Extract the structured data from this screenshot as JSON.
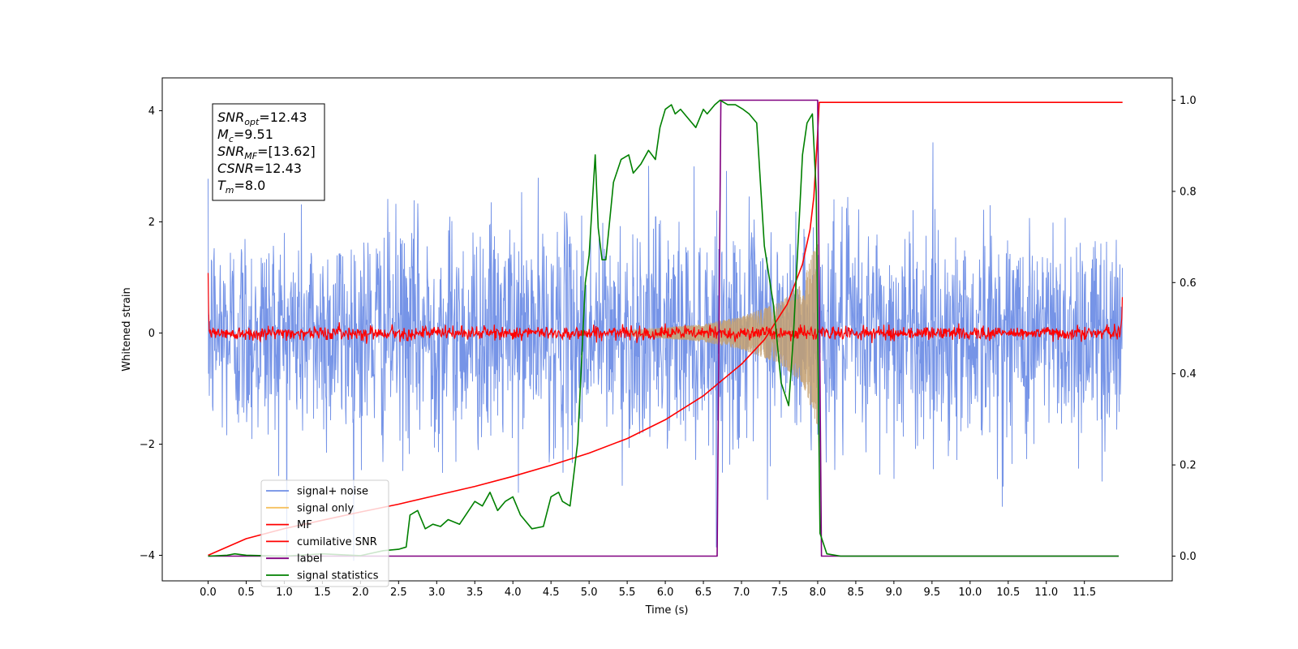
{
  "chart_data": {
    "type": "line",
    "xlabel": "Time (s)",
    "ylabel": "Whitened strain",
    "xlim": [
      -0.6,
      12.6
    ],
    "ylim": [
      -4.45,
      4.6
    ],
    "y2lim": [
      -0.05,
      1.04
    ],
    "x_ticks": [
      "0.0",
      "0.5",
      "1.0",
      "1.5",
      "2.0",
      "2.5",
      "3.0",
      "3.5",
      "4.0",
      "4.5",
      "5.0",
      "5.5",
      "6.0",
      "6.5",
      "7.0",
      "7.5",
      "8.0",
      "8.5",
      "9.0",
      "9.5",
      "10.0",
      "10.5",
      "11.0",
      "11.5"
    ],
    "y_ticks": [
      "4",
      "2",
      "0",
      "−2",
      "−4"
    ],
    "y2_ticks": [
      "1.0",
      "0.8",
      "0.6",
      "0.4",
      "0.2",
      "0.0"
    ],
    "info_box": [
      {
        "sym": "SNR",
        "sub": "opt",
        "value": "=12.43"
      },
      {
        "sym": "M",
        "sub": "c",
        "value": "=9.51"
      },
      {
        "sym": "SNR",
        "sub": "MF",
        "value": "=[13.62]"
      },
      {
        "sym": "CSNR",
        "sub": "",
        "value": "=12.43"
      },
      {
        "sym": "T",
        "sub": "m",
        "value": "=8.0"
      }
    ],
    "legend": [
      {
        "label": "signal+ noise",
        "color": "#6f8ee6"
      },
      {
        "label": "signal only",
        "color": "#f5c060"
      },
      {
        "label": "MF",
        "color": "#ff0000"
      },
      {
        "label": "cumilative SNR",
        "color": "#ff0000"
      },
      {
        "label": "label",
        "color": "#800080"
      },
      {
        "label": "signal statistics",
        "color": "#008000"
      }
    ],
    "series": [
      {
        "name": "signal+ noise",
        "axis": "left",
        "color": "#6f8ee6",
        "x_range": [
          0,
          12.0
        ],
        "noise_sigma": 1.0,
        "mean": 0
      },
      {
        "name": "signal only",
        "axis": "left",
        "color": "#c4a070",
        "x_range": [
          5.5,
          8.0
        ],
        "envelope_x": [
          5.5,
          6.0,
          6.5,
          7.0,
          7.5,
          7.8,
          8.0
        ],
        "envelope_y": [
          0.05,
          0.1,
          0.16,
          0.3,
          0.55,
          0.9,
          1.7
        ]
      },
      {
        "name": "MF",
        "axis": "left",
        "color": "#ff0000",
        "x_range": [
          0,
          12.0
        ],
        "noise_sigma": 0.06,
        "mean": 0,
        "start_spike": 1.0,
        "end_spike": 0.95
      },
      {
        "name": "cumilative SNR",
        "axis": "left",
        "color": "#ff0000",
        "x": [
          0.0,
          0.5,
          1.0,
          1.5,
          2.0,
          2.5,
          3.0,
          3.5,
          4.0,
          4.5,
          5.0,
          5.5,
          6.0,
          6.5,
          7.0,
          7.3,
          7.6,
          7.8,
          7.9,
          7.95,
          8.0,
          8.02,
          12.0
        ],
        "y": [
          -4.0,
          -3.7,
          -3.52,
          -3.37,
          -3.22,
          -3.08,
          -2.92,
          -2.76,
          -2.58,
          -2.38,
          -2.16,
          -1.9,
          -1.56,
          -1.13,
          -0.56,
          -0.12,
          0.52,
          1.24,
          1.86,
          2.45,
          3.6,
          4.15,
          4.15
        ]
      },
      {
        "name": "label",
        "axis": "right",
        "color": "#800080",
        "x": [
          0.0,
          6.68,
          6.73,
          8.0,
          8.05,
          11.95
        ],
        "y": [
          0.0,
          0.0,
          1.0,
          1.0,
          0.0,
          0.0
        ]
      },
      {
        "name": "signal statistics",
        "axis": "right",
        "color": "#008000",
        "x": [
          0.0,
          0.25,
          0.35,
          0.5,
          1.0,
          1.5,
          2.0,
          2.3,
          2.5,
          2.6,
          2.65,
          2.75,
          2.85,
          2.95,
          3.05,
          3.15,
          3.3,
          3.5,
          3.6,
          3.7,
          3.8,
          3.9,
          4.0,
          4.1,
          4.25,
          4.4,
          4.5,
          4.6,
          4.65,
          4.75,
          4.85,
          4.95,
          5.0,
          5.08,
          5.12,
          5.17,
          5.22,
          5.32,
          5.42,
          5.52,
          5.58,
          5.68,
          5.78,
          5.87,
          5.93,
          6.0,
          6.08,
          6.13,
          6.2,
          6.3,
          6.4,
          6.5,
          6.55,
          6.65,
          6.72,
          6.82,
          6.92,
          7.02,
          7.1,
          7.2,
          7.3,
          7.42,
          7.52,
          7.62,
          7.68,
          7.8,
          7.86,
          7.93,
          7.98,
          8.03,
          8.12,
          8.3,
          11.95
        ],
        "y": [
          0.0,
          0.002,
          0.005,
          0.002,
          0.0,
          0.005,
          0.001,
          0.012,
          0.015,
          0.02,
          0.09,
          0.1,
          0.06,
          0.07,
          0.065,
          0.08,
          0.07,
          0.12,
          0.11,
          0.14,
          0.1,
          0.12,
          0.13,
          0.09,
          0.06,
          0.065,
          0.13,
          0.14,
          0.12,
          0.11,
          0.25,
          0.6,
          0.66,
          0.88,
          0.72,
          0.65,
          0.65,
          0.82,
          0.87,
          0.88,
          0.84,
          0.86,
          0.89,
          0.87,
          0.94,
          0.98,
          0.99,
          0.97,
          0.98,
          0.96,
          0.94,
          0.98,
          0.97,
          0.99,
          1.0,
          0.99,
          0.99,
          0.98,
          0.97,
          0.95,
          0.68,
          0.55,
          0.38,
          0.33,
          0.48,
          0.88,
          0.95,
          0.97,
          0.8,
          0.05,
          0.005,
          0.0,
          0.0
        ]
      }
    ]
  }
}
